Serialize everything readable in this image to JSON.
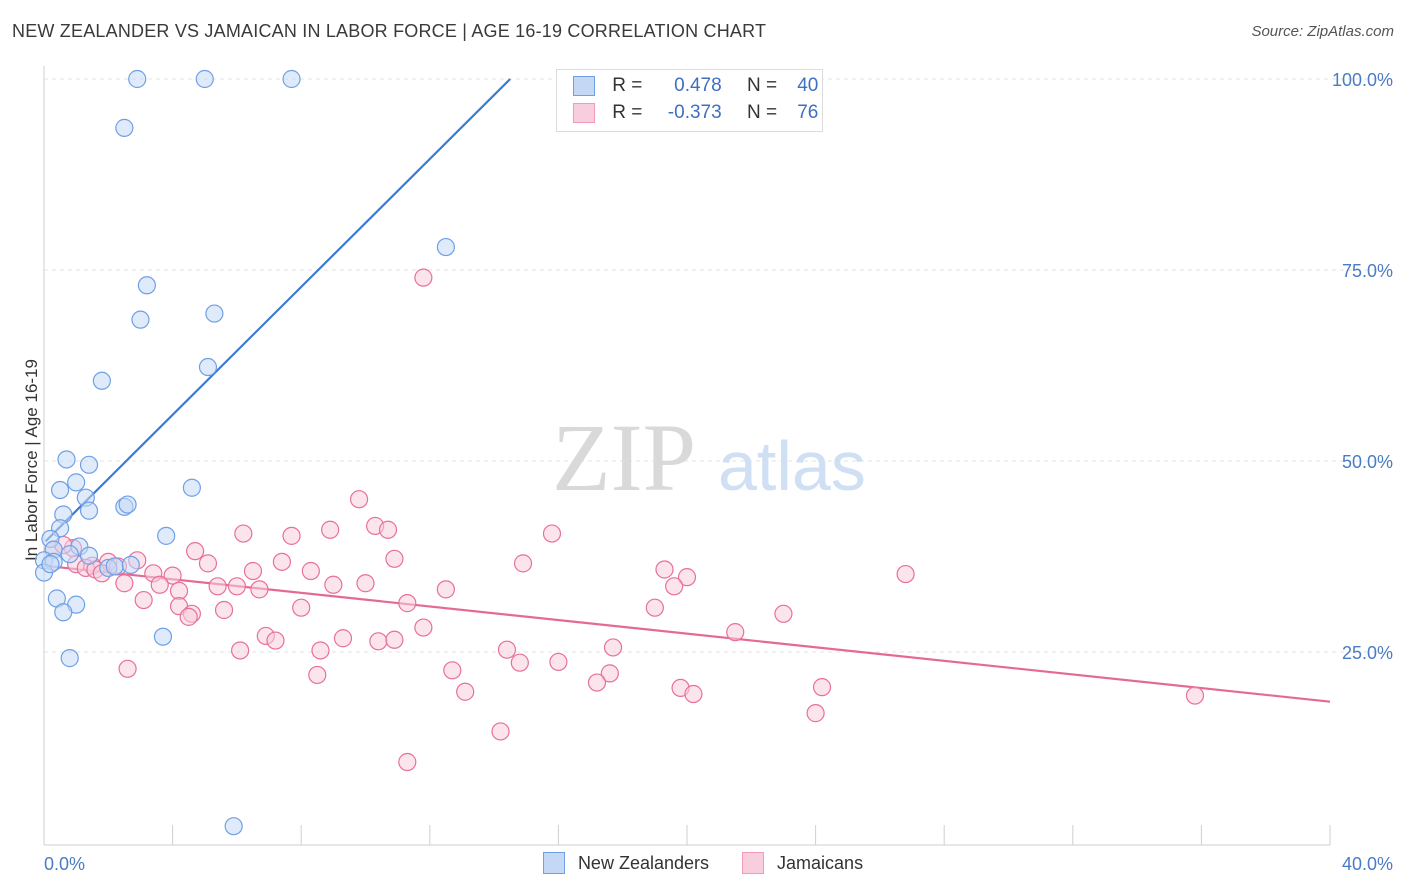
{
  "header": {
    "title": "NEW ZEALANDER VS JAMAICAN IN LABOR FORCE | AGE 16-19 CORRELATION CHART",
    "source": "Source: ZipAtlas.com"
  },
  "watermark": {
    "zip": "ZIP",
    "atlas": "atlas"
  },
  "legend": {
    "rows": [
      {
        "r_label": "R =",
        "r_value": "0.478",
        "n_label": "N =",
        "n_value": "40",
        "color": "#6fa0e6"
      },
      {
        "r_label": "R =",
        "r_value": "-0.373",
        "n_label": "N =",
        "n_value": "76",
        "color": "#f29ab8"
      }
    ]
  },
  "bottom_legend": {
    "items": [
      "New Zealanders",
      "Jamaicans"
    ]
  },
  "chart_data": {
    "type": "scatter",
    "title": "NEW ZEALANDER VS JAMAICAN IN LABOR FORCE | AGE 16-19 CORRELATION CHART",
    "xlabel": "",
    "ylabel": "In Labor Force | Age 16-19",
    "xlim": [
      0,
      40
    ],
    "ylim": [
      0,
      102
    ],
    "x_tick_labels": [
      {
        "value": 0,
        "label": "0.0%"
      },
      {
        "value": 40,
        "label": "40.0%"
      }
    ],
    "y_tick_labels": [
      {
        "value": 25,
        "label": "25.0%"
      },
      {
        "value": 50,
        "label": "50.0%"
      },
      {
        "value": 75,
        "label": "75.0%"
      },
      {
        "value": 100,
        "label": "100.0%"
      }
    ],
    "grid": true,
    "legend_position": "top-center",
    "series": [
      {
        "name": "New Zealanders",
        "color": "#6fa0e6",
        "fill": "#c4d8f6",
        "trend": {
          "x": [
            0.05,
            14.5
          ],
          "y": [
            39.5,
            100
          ]
        },
        "points": [
          [
            2.9,
            100
          ],
          [
            5.0,
            100
          ],
          [
            7.7,
            100
          ],
          [
            2.5,
            93.6
          ],
          [
            12.5,
            78
          ],
          [
            3.2,
            73
          ],
          [
            5.3,
            69.3
          ],
          [
            3.0,
            68.5
          ],
          [
            5.1,
            62.3
          ],
          [
            1.8,
            60.5
          ],
          [
            0.7,
            50.2
          ],
          [
            1.4,
            49.5
          ],
          [
            0.5,
            46.2
          ],
          [
            1.0,
            47.2
          ],
          [
            4.6,
            46.5
          ],
          [
            1.3,
            45.2
          ],
          [
            1.4,
            43.5
          ],
          [
            2.5,
            44.0
          ],
          [
            2.6,
            44.3
          ],
          [
            0.6,
            43.0
          ],
          [
            3.8,
            40.2
          ],
          [
            0.5,
            41.2
          ],
          [
            0.2,
            39.8
          ],
          [
            0.3,
            38.4
          ],
          [
            1.1,
            38.8
          ],
          [
            0.8,
            37.8
          ],
          [
            1.4,
            37.6
          ],
          [
            0.0,
            37.0
          ],
          [
            0.3,
            36.8
          ],
          [
            2.0,
            36.0
          ],
          [
            2.2,
            36.2
          ],
          [
            2.7,
            36.4
          ],
          [
            0.0,
            35.4
          ],
          [
            0.4,
            32.0
          ],
          [
            1.0,
            31.2
          ],
          [
            0.6,
            30.2
          ],
          [
            3.7,
            27.0
          ],
          [
            0.8,
            24.2
          ],
          [
            5.9,
            2.2
          ],
          [
            0.2,
            36.5
          ]
        ]
      },
      {
        "name": "Jamaicans",
        "color": "#e8709a",
        "fill": "#f8cddd",
        "trend": {
          "x": [
            0.0,
            40.0
          ],
          "y": [
            36.3,
            18.5
          ]
        },
        "points": [
          [
            11.8,
            74.0
          ],
          [
            9.8,
            45.0
          ],
          [
            10.3,
            41.5
          ],
          [
            10.7,
            41.0
          ],
          [
            8.9,
            41.0
          ],
          [
            15.8,
            40.5
          ],
          [
            6.2,
            40.5
          ],
          [
            7.7,
            40.2
          ],
          [
            4.7,
            38.2
          ],
          [
            0.9,
            38.6
          ],
          [
            0.3,
            38.4
          ],
          [
            0.6,
            39.0
          ],
          [
            2.9,
            37.0
          ],
          [
            2.0,
            36.8
          ],
          [
            1.0,
            36.5
          ],
          [
            1.5,
            36.3
          ],
          [
            7.4,
            36.8
          ],
          [
            5.1,
            36.6
          ],
          [
            10.9,
            37.2
          ],
          [
            14.9,
            36.6
          ],
          [
            1.3,
            36.0
          ],
          [
            2.3,
            36.2
          ],
          [
            1.6,
            35.8
          ],
          [
            1.8,
            35.3
          ],
          [
            6.5,
            35.6
          ],
          [
            8.3,
            35.6
          ],
          [
            3.4,
            35.3
          ],
          [
            4.0,
            35.0
          ],
          [
            2.5,
            34.0
          ],
          [
            3.6,
            33.8
          ],
          [
            9.0,
            33.8
          ],
          [
            10.0,
            34.0
          ],
          [
            5.4,
            33.6
          ],
          [
            6.0,
            33.6
          ],
          [
            6.7,
            33.2
          ],
          [
            12.5,
            33.2
          ],
          [
            19.3,
            35.8
          ],
          [
            20.0,
            34.8
          ],
          [
            19.6,
            33.6
          ],
          [
            26.8,
            35.2
          ],
          [
            3.1,
            31.8
          ],
          [
            4.2,
            33.0
          ],
          [
            4.2,
            31.0
          ],
          [
            5.6,
            30.5
          ],
          [
            8.0,
            30.8
          ],
          [
            11.3,
            31.4
          ],
          [
            4.6,
            30.0
          ],
          [
            4.5,
            29.6
          ],
          [
            19.0,
            30.8
          ],
          [
            23.0,
            30.0
          ],
          [
            11.8,
            28.2
          ],
          [
            6.9,
            27.1
          ],
          [
            7.2,
            26.5
          ],
          [
            9.3,
            26.8
          ],
          [
            10.4,
            26.4
          ],
          [
            10.9,
            26.6
          ],
          [
            21.5,
            27.6
          ],
          [
            6.1,
            25.2
          ],
          [
            8.6,
            25.2
          ],
          [
            14.4,
            25.3
          ],
          [
            17.7,
            25.6
          ],
          [
            14.8,
            23.6
          ],
          [
            16.0,
            23.7
          ],
          [
            2.6,
            22.8
          ],
          [
            12.7,
            22.6
          ],
          [
            17.6,
            22.2
          ],
          [
            8.5,
            22.0
          ],
          [
            17.2,
            21.0
          ],
          [
            13.1,
            19.8
          ],
          [
            19.8,
            20.3
          ],
          [
            20.2,
            19.5
          ],
          [
            24.2,
            20.4
          ],
          [
            24.0,
            17.0
          ],
          [
            14.2,
            14.6
          ],
          [
            35.8,
            19.3
          ],
          [
            11.3,
            10.6
          ]
        ]
      }
    ]
  }
}
